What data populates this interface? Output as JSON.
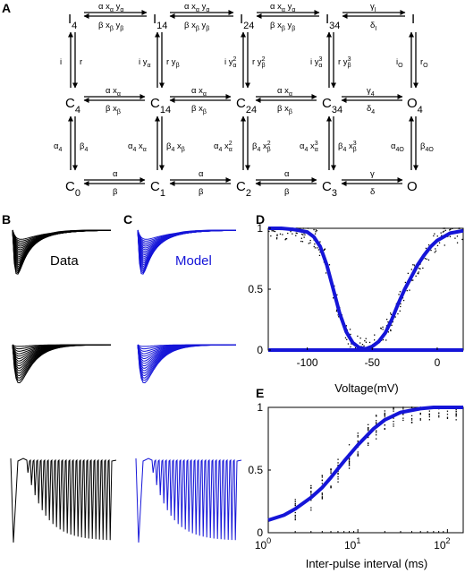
{
  "panels": {
    "a": "A",
    "b": "B",
    "c": "C",
    "d": "D",
    "e": "E"
  },
  "scheme": {
    "nodes": {
      "I4": "I",
      "I4sub": "4",
      "I14": "I",
      "I14sub": "14",
      "I24": "I",
      "I24sub": "24",
      "I34": "I",
      "I34sub": "34",
      "I": "I",
      "C4": "C",
      "C4sub": "4",
      "C14": "C",
      "C14sub": "14",
      "C24": "C",
      "C24sub": "24",
      "C34": "C",
      "C34sub": "34",
      "O4": "O",
      "O4sub": "4",
      "C0": "C",
      "C0sub": "0",
      "C1": "C",
      "C1sub": "1",
      "C2": "C",
      "C2sub": "2",
      "C3": "C",
      "C3sub": "3",
      "O": "O"
    },
    "colors": {
      "arrow": "#000000",
      "text": "#000000"
    }
  },
  "traces": {
    "data_label": "Data",
    "model_label": "Model",
    "data_color": "#000000",
    "model_color": "#1515d8"
  },
  "chart_data": [
    {
      "type": "scatter",
      "panel": "D",
      "xlabel": "Voltage(mV)",
      "ylabel": "",
      "xlim": [
        -130,
        20
      ],
      "ylim": [
        0,
        1
      ],
      "xticks": [
        "-100",
        "-50",
        "0"
      ],
      "yticks": [
        "0",
        "0.5",
        "1"
      ],
      "series": [
        {
          "role": "inactivation-fit",
          "x": [
            -130,
            -120,
            -110,
            -100,
            -95,
            -90,
            -85,
            -80,
            -75,
            -70,
            -65,
            -60,
            -55,
            -50
          ],
          "y": [
            1.0,
            1.0,
            0.99,
            0.97,
            0.93,
            0.85,
            0.7,
            0.5,
            0.3,
            0.15,
            0.06,
            0.02,
            0.01,
            0.0
          ]
        },
        {
          "role": "activation-fit",
          "x": [
            -70,
            -60,
            -55,
            -50,
            -45,
            -40,
            -35,
            -30,
            -25,
            -20,
            -15,
            -10,
            -5,
            0,
            10,
            20
          ],
          "y": [
            0.0,
            0.0,
            0.01,
            0.03,
            0.07,
            0.14,
            0.25,
            0.38,
            0.5,
            0.6,
            0.7,
            0.78,
            0.85,
            0.9,
            0.96,
            0.98
          ]
        }
      ],
      "color": "#1515d8"
    },
    {
      "type": "scatter",
      "panel": "E",
      "xlabel": "Inter-pulse interval (ms)",
      "ylabel": "",
      "xscale": "log",
      "xlim": [
        1,
        150
      ],
      "ylim": [
        0,
        1
      ],
      "xticks": [
        "10^0",
        "10^1",
        "10^2"
      ],
      "yticks": [
        "0",
        "0.5",
        "1"
      ],
      "series": [
        {
          "role": "recovery-fit",
          "x": [
            1,
            1.5,
            2,
            3,
            4,
            5,
            7,
            10,
            15,
            20,
            30,
            50,
            70,
            100,
            150
          ],
          "y": [
            0.1,
            0.14,
            0.19,
            0.28,
            0.36,
            0.44,
            0.57,
            0.7,
            0.83,
            0.9,
            0.96,
            0.99,
            1.0,
            1.0,
            1.0
          ]
        }
      ],
      "color": "#1515d8"
    }
  ]
}
